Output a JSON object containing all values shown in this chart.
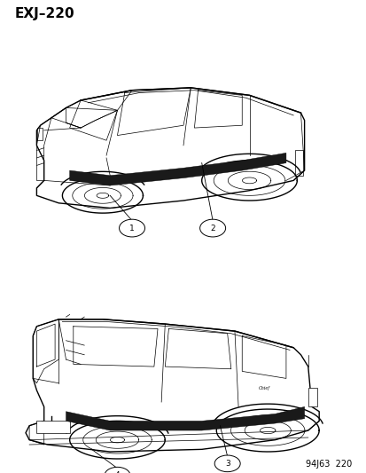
{
  "title": "EXJ–220",
  "footer": "94J63  220",
  "bg": "#ffffff",
  "lc": "#000000",
  "title_fs": 11,
  "footer_fs": 7,
  "callout_fs": 6.5
}
